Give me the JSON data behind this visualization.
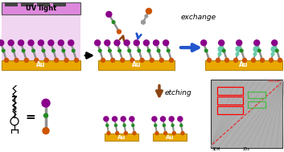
{
  "bg_color": "#ffffff",
  "au_color": "#E8A800",
  "au_border_color": "#B8860B",
  "stem_color": "#909090",
  "head_color": "#8B008B",
  "mid_color": "#228B22",
  "base_color": "#CC5500",
  "uv_box_color": "#DD88DD",
  "uv_bar_color": "#444444",
  "uv_text": "UV light",
  "exchange_text": "exchange",
  "etching_text": "etching",
  "au_text": "Au",
  "arrow_black": "#111111",
  "arrow_blue": "#2255CC",
  "arrow_brown": "#8B4513",
  "teal_color": "#66CCAA",
  "panel_bg": "#ffffff"
}
